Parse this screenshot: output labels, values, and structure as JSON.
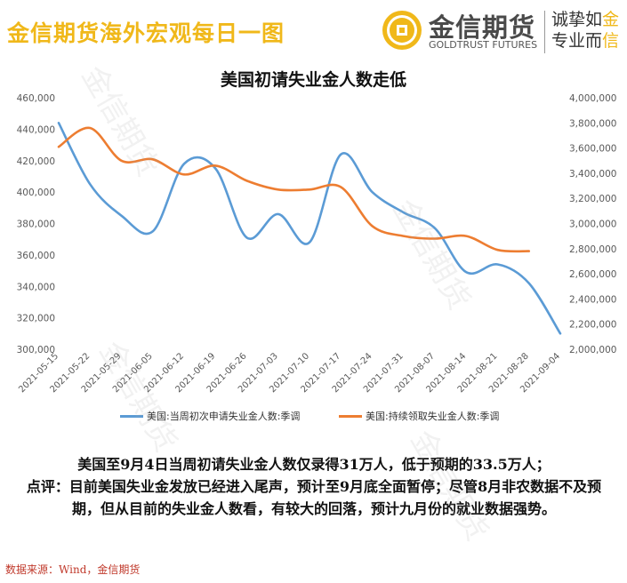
{
  "header": {
    "title": "金信期货海外宏观每日一图",
    "logo_cn": "金信期货",
    "logo_en": "GOLDTRUST FUTURES",
    "slogan_line1_a": "诚挚如",
    "slogan_line1_b": "金",
    "slogan_line2_a": "专业而",
    "slogan_line2_b": "信"
  },
  "watermark_text": "金信期货",
  "chart_data": {
    "type": "line",
    "title": "美国初请失业金人数走低",
    "x_labels": [
      "2021-05-15",
      "2021-05-22",
      "2021-05-29",
      "2021-06-05",
      "2021-06-12",
      "2021-06-19",
      "2021-06-26",
      "2021-07-03",
      "2021-07-10",
      "2021-07-17",
      "2021-07-24",
      "2021-07-31",
      "2021-08-07",
      "2021-08-14",
      "2021-08-21",
      "2021-08-28",
      "2021-09-04"
    ],
    "y_left": {
      "min": 300000,
      "max": 460000,
      "step": 20000,
      "ticks": [
        "300,000",
        "320,000",
        "340,000",
        "360,000",
        "380,000",
        "400,000",
        "420,000",
        "440,000",
        "460,000"
      ]
    },
    "y_right": {
      "min": 2000000,
      "max": 4000000,
      "step": 200000,
      "ticks": [
        "2,000,000",
        "2,200,000",
        "2,400,000",
        "2,600,000",
        "2,800,000",
        "3,000,000",
        "3,200,000",
        "3,400,000",
        "3,600,000",
        "3,800,000",
        "4,000,000"
      ]
    },
    "grid": false,
    "legend_position": "bottom",
    "series": [
      {
        "name": "美国:当周初次申请失业金人数:季调",
        "axis": "left",
        "color": "#5b9bd5",
        "values": [
          444000,
          405000,
          385000,
          375000,
          418000,
          415000,
          371000,
          386000,
          368000,
          424000,
          400000,
          387000,
          377000,
          349000,
          354000,
          342000,
          310000
        ]
      },
      {
        "name": "美国:持续领取失业金人数:季调",
        "axis": "right",
        "color": "#ed7d31",
        "values": [
          3610000,
          3760000,
          3500000,
          3510000,
          3390000,
          3460000,
          3340000,
          3270000,
          3270000,
          3290000,
          2980000,
          2900000,
          2880000,
          2900000,
          2790000,
          2780000,
          null
        ]
      }
    ]
  },
  "commentary": {
    "line1": "美国至9月4日当周初请失业金人数仅录得31万人，低于预期的33.5万人；",
    "line2": "点评：目前美国失业金发放已经进入尾声，预计至9月底全面暂停；尽管8月非农数据不及预期，但从目前的失业金人数看，有较大的回落，预计九月份的就业数据强势。"
  },
  "source": "数据来源：Wind，金信期货"
}
